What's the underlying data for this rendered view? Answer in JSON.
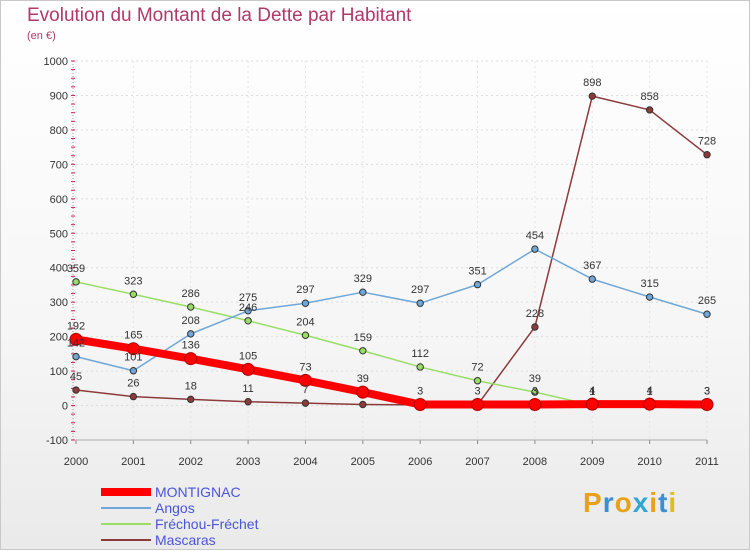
{
  "title": "Evolution du Montant de la Dette par Habitant",
  "unit_label": "(en €)",
  "logo": {
    "text": "Proxiti",
    "colors": [
      "#e8a11c",
      "#3d8fd4",
      "#e8a11c",
      "#2fa7d9",
      "#e8a11c",
      "#3d8fd4",
      "#d8c11c"
    ]
  },
  "chart_data": {
    "type": "line",
    "title": "Evolution du Montant de la Dette par Habitant",
    "ylabel": "(en €)",
    "xlabel": "",
    "ylim": [
      -100,
      1000
    ],
    "yticks": [
      -100,
      0,
      100,
      200,
      300,
      400,
      500,
      600,
      700,
      800,
      900,
      1000
    ],
    "categories": [
      "2000",
      "2001",
      "2002",
      "2003",
      "2004",
      "2005",
      "2006",
      "2007",
      "2008",
      "2009",
      "2010",
      "2011"
    ],
    "legend_position": "bottom-left",
    "grid": "horizontal",
    "series": [
      {
        "name": "MONTIGNAC",
        "color": "#ff0000",
        "values": [
          192,
          165,
          136,
          105,
          73,
          39,
          3,
          3,
          3,
          4,
          4,
          3
        ],
        "labels": [
          "192",
          "165",
          "136",
          "105",
          "73",
          "39",
          "3",
          "3",
          "3",
          "4",
          "4",
          "3"
        ]
      },
      {
        "name": "Angos",
        "color": "#6fa8d8",
        "values": [
          142,
          101,
          208,
          275,
          297,
          329,
          297,
          351,
          454,
          367,
          315,
          265
        ],
        "labels": [
          "142",
          "101",
          "208",
          "275",
          "297",
          "329",
          "297",
          "351",
          "454",
          "367",
          "315",
          "265"
        ]
      },
      {
        "name": "Fréchou-Fréchet",
        "color": "#99dd66",
        "values": [
          359,
          323,
          286,
          246,
          204,
          159,
          112,
          72,
          39,
          1,
          1,
          3
        ],
        "labels": [
          "359",
          "323",
          "286",
          "246",
          "204",
          "159",
          "112",
          "72",
          "39",
          "1",
          "1",
          "3"
        ]
      },
      {
        "name": "Mascaras",
        "color": "#8c3a3a",
        "values": [
          45,
          26,
          18,
          11,
          7,
          3,
          2,
          2,
          228,
          898,
          858,
          728
        ],
        "labels": [
          "45",
          "26",
          "18",
          "11",
          "7",
          "",
          "",
          "",
          "228",
          "898",
          "858",
          "728"
        ]
      }
    ]
  }
}
